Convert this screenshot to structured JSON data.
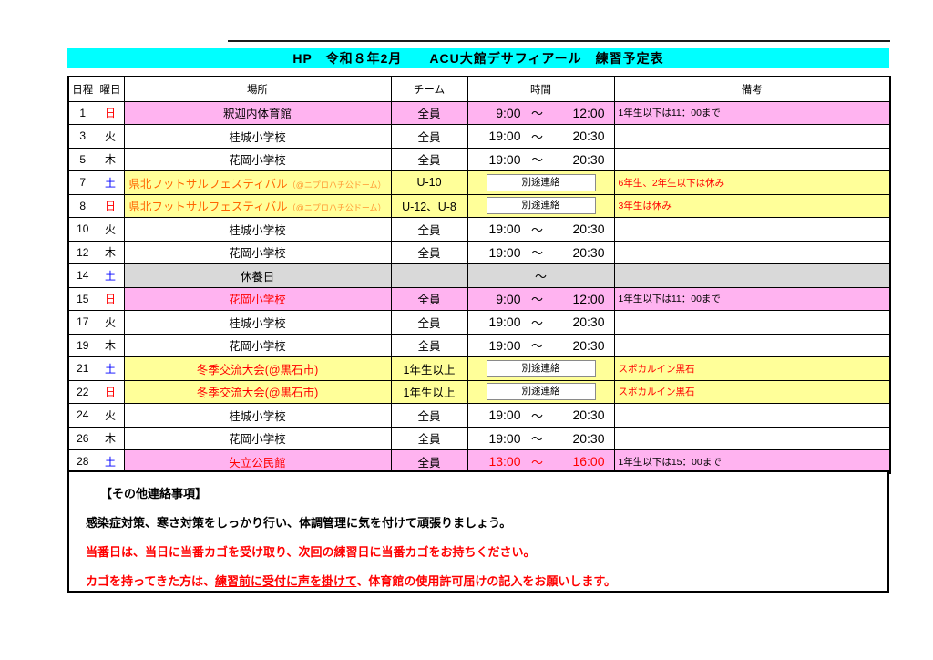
{
  "title": {
    "text": "HP　令和８年2月　　ACU大館デサフィアール　練習予定表",
    "bg": "#00FFFF"
  },
  "colors": {
    "pink": "#FFB3F0",
    "yellow": "#FFFF99",
    "gray": "#D9D9D9",
    "white": "#FFFFFF",
    "red": "#FF0000",
    "blue": "#0000FF",
    "black": "#000000",
    "festival_orange": "#FF6600",
    "festival_sub_orange": "#FF9933"
  },
  "table": {
    "headers": [
      "日程",
      "曜日",
      "場所",
      "チーム",
      "時間",
      "備考"
    ],
    "tilde": "～",
    "rows": [
      {
        "date": "1",
        "day": "日",
        "dayColor": "#FF0000",
        "place": "釈迦内体育館",
        "placeColor": "#000000",
        "placeSub": "",
        "team": "全員",
        "timeType": "range",
        "timeStart": "9:00",
        "timeEnd": "12:00",
        "timeColor": "#000000",
        "separate": "",
        "note": "1年生以下は11：00まで",
        "noteColor": "#000000",
        "bg": "#FFB3F0"
      },
      {
        "date": "3",
        "day": "火",
        "dayColor": "#000000",
        "place": "桂城小学校",
        "placeColor": "#000000",
        "placeSub": "",
        "team": "全員",
        "timeType": "range",
        "timeStart": "19:00",
        "timeEnd": "20:30",
        "timeColor": "#000000",
        "separate": "",
        "note": "",
        "noteColor": "#000000",
        "bg": "#FFFFFF"
      },
      {
        "date": "5",
        "day": "木",
        "dayColor": "#000000",
        "place": "花岡小学校",
        "placeColor": "#000000",
        "placeSub": "",
        "team": "全員",
        "timeType": "range",
        "timeStart": "19:00",
        "timeEnd": "20:30",
        "timeColor": "#000000",
        "separate": "",
        "note": "",
        "noteColor": "#000000",
        "bg": "#FFFFFF"
      },
      {
        "date": "7",
        "day": "土",
        "dayColor": "#0000FF",
        "place": "県北フットサルフェスティバル",
        "placeColor": "#FF6600",
        "placeSub": "（@ニプロハチ公ドーム）",
        "team": "U-10",
        "timeType": "separate",
        "timeStart": "",
        "timeEnd": "",
        "timeColor": "#000000",
        "separate": "別途連絡",
        "note": "6年生、2年生以下は休み",
        "noteColor": "#FF0000",
        "bg": "#FFFF99"
      },
      {
        "date": "8",
        "day": "日",
        "dayColor": "#FF0000",
        "place": "県北フットサルフェスティバル",
        "placeColor": "#FF6600",
        "placeSub": "（@ニプロハチ公ドーム）",
        "team": "U-12、U-8",
        "timeType": "separate",
        "timeStart": "",
        "timeEnd": "",
        "timeColor": "#000000",
        "separate": "別途連絡",
        "note": "3年生は休み",
        "noteColor": "#FF0000",
        "bg": "#FFFF99"
      },
      {
        "date": "10",
        "day": "火",
        "dayColor": "#000000",
        "place": "桂城小学校",
        "placeColor": "#000000",
        "placeSub": "",
        "team": "全員",
        "timeType": "range",
        "timeStart": "19:00",
        "timeEnd": "20:30",
        "timeColor": "#000000",
        "separate": "",
        "note": "",
        "noteColor": "#000000",
        "bg": "#FFFFFF"
      },
      {
        "date": "12",
        "day": "木",
        "dayColor": "#000000",
        "place": "花岡小学校",
        "placeColor": "#000000",
        "placeSub": "",
        "team": "全員",
        "timeType": "range",
        "timeStart": "19:00",
        "timeEnd": "20:30",
        "timeColor": "#000000",
        "separate": "",
        "note": "",
        "noteColor": "#000000",
        "bg": "#FFFFFF"
      },
      {
        "date": "14",
        "day": "土",
        "dayColor": "#0000FF",
        "place": "休養日",
        "placeColor": "#000000",
        "placeSub": "",
        "team": "",
        "timeType": "tilde",
        "timeStart": "",
        "timeEnd": "",
        "timeColor": "#000000",
        "separate": "",
        "note": "",
        "noteColor": "#000000",
        "bg": "#D9D9D9"
      },
      {
        "date": "15",
        "day": "日",
        "dayColor": "#FF0000",
        "place": "花岡小学校",
        "placeColor": "#FF0000",
        "placeSub": "",
        "team": "全員",
        "timeType": "range",
        "timeStart": "9:00",
        "timeEnd": "12:00",
        "timeColor": "#000000",
        "separate": "",
        "note": "1年生以下は11：00まで",
        "noteColor": "#000000",
        "bg": "#FFB3F0"
      },
      {
        "date": "17",
        "day": "火",
        "dayColor": "#000000",
        "place": "桂城小学校",
        "placeColor": "#000000",
        "placeSub": "",
        "team": "全員",
        "timeType": "range",
        "timeStart": "19:00",
        "timeEnd": "20:30",
        "timeColor": "#000000",
        "separate": "",
        "note": "",
        "noteColor": "#000000",
        "bg": "#FFFFFF"
      },
      {
        "date": "19",
        "day": "木",
        "dayColor": "#000000",
        "place": "花岡小学校",
        "placeColor": "#000000",
        "placeSub": "",
        "team": "全員",
        "timeType": "range",
        "timeStart": "19:00",
        "timeEnd": "20:30",
        "timeColor": "#000000",
        "separate": "",
        "note": "",
        "noteColor": "#000000",
        "bg": "#FFFFFF"
      },
      {
        "date": "21",
        "day": "土",
        "dayColor": "#0000FF",
        "place": "冬季交流大会(@黒石市)",
        "placeColor": "#FF0000",
        "placeSub": "",
        "team": "1年生以上",
        "timeType": "separate",
        "timeStart": "",
        "timeEnd": "",
        "timeColor": "#000000",
        "separate": "別途連絡",
        "note": "スポカルイン黒石",
        "noteColor": "#FF0000",
        "bg": "#FFFF99"
      },
      {
        "date": "22",
        "day": "日",
        "dayColor": "#FF0000",
        "place": "冬季交流大会(@黒石市)",
        "placeColor": "#FF0000",
        "placeSub": "",
        "team": "1年生以上",
        "timeType": "separate",
        "timeStart": "",
        "timeEnd": "",
        "timeColor": "#000000",
        "separate": "別途連絡",
        "note": "スポカルイン黒石",
        "noteColor": "#FF0000",
        "bg": "#FFFF99"
      },
      {
        "date": "24",
        "day": "火",
        "dayColor": "#000000",
        "place": "桂城小学校",
        "placeColor": "#000000",
        "placeSub": "",
        "team": "全員",
        "timeType": "range",
        "timeStart": "19:00",
        "timeEnd": "20:30",
        "timeColor": "#000000",
        "separate": "",
        "note": "",
        "noteColor": "#000000",
        "bg": "#FFFFFF"
      },
      {
        "date": "26",
        "day": "木",
        "dayColor": "#000000",
        "place": "花岡小学校",
        "placeColor": "#000000",
        "placeSub": "",
        "team": "全員",
        "timeType": "range",
        "timeStart": "19:00",
        "timeEnd": "20:30",
        "timeColor": "#000000",
        "separate": "",
        "note": "",
        "noteColor": "#000000",
        "bg": "#FFFFFF"
      },
      {
        "date": "28",
        "day": "土",
        "dayColor": "#0000FF",
        "place": "矢立公民館",
        "placeColor": "#FF0000",
        "placeSub": "",
        "team": "全員",
        "timeType": "range",
        "timeStart": "13:00",
        "timeEnd": "16:00",
        "timeColor": "#FF0000",
        "separate": "",
        "note": "1年生以下は15：00まで",
        "noteColor": "#000000",
        "bg": "#FFB3F0"
      }
    ]
  },
  "notes": {
    "heading": "【その他連絡事項】",
    "line1": "感染症対策、寒さ対策をしっかり行い、体調管理に気を付けて頑張りましょう。",
    "line2": "当番日は、当日に当番カゴを受け取り、次回の練習日に当番カゴをお持ちください。",
    "line3_prefix": "カゴを持ってきた方は、",
    "line3_underline": "練習前に受付に声を掛けて",
    "line3_suffix": "、体育館の使用許可届けの記入をお願いします。"
  }
}
